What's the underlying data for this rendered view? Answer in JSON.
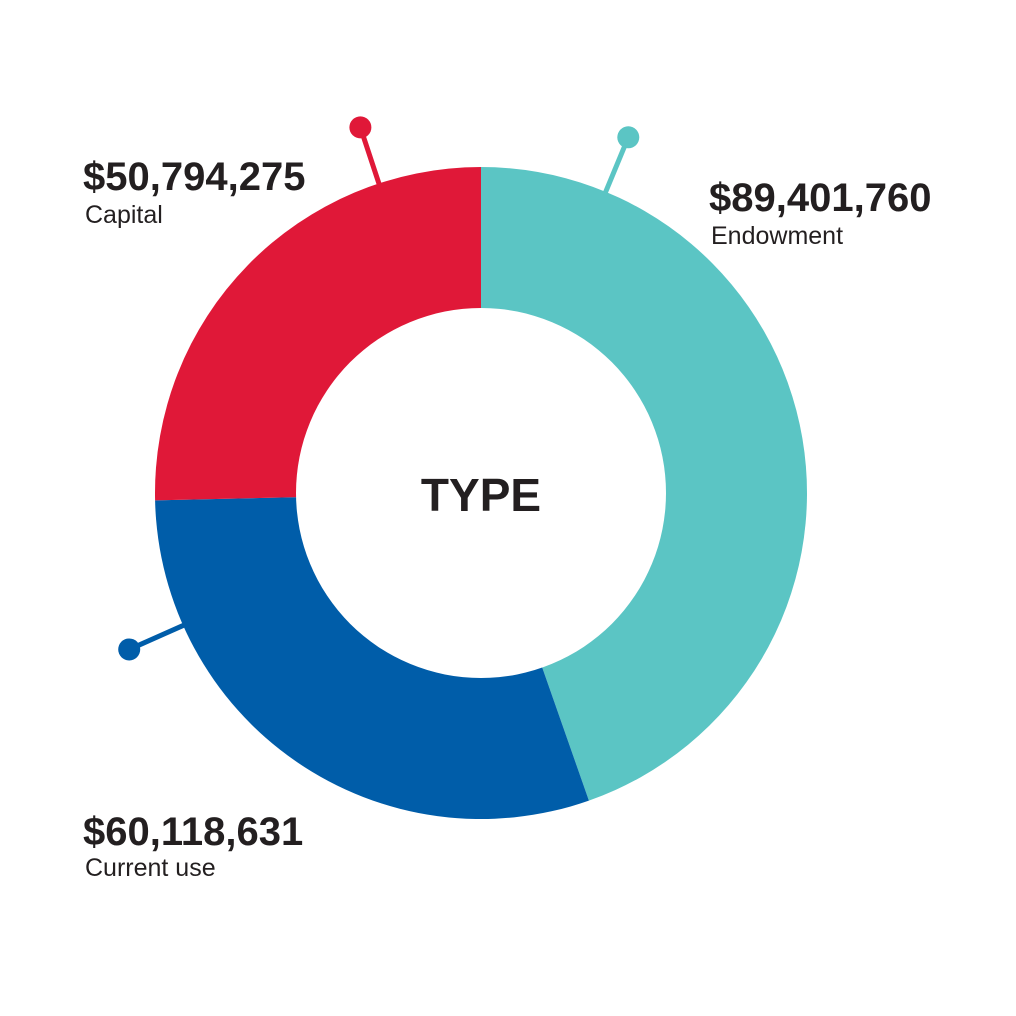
{
  "chart_data": {
    "type": "pie",
    "center_label": "TYPE",
    "slices": [
      {
        "name": "Endowment",
        "value": 89401760,
        "value_label": "$89,401,760",
        "color": "#5bc5c4"
      },
      {
        "name": "Current use",
        "value": 60118631,
        "value_label": "$60,118,631",
        "color": "#005da9"
      },
      {
        "name": "Capital",
        "value": 50794275,
        "value_label": "$50,794,275",
        "color": "#e01838"
      }
    ]
  }
}
